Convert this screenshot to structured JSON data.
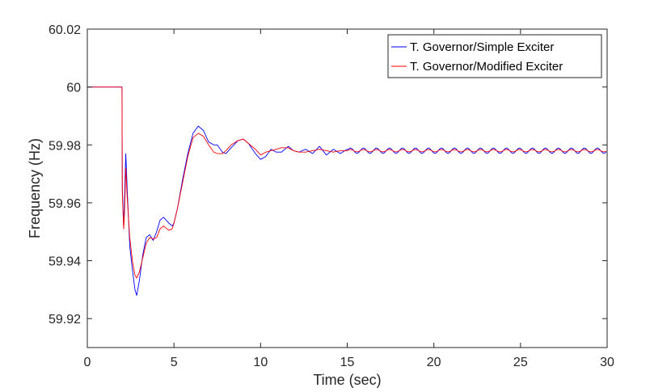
{
  "chart_data": {
    "type": "line",
    "title": "",
    "xlabel": "Time (sec)",
    "ylabel": "Frequency (Hz)",
    "xlim": [
      0,
      30
    ],
    "ylim": [
      59.91,
      60.02
    ],
    "xticks": [
      0,
      5,
      10,
      15,
      20,
      25,
      30
    ],
    "xtick_labels": [
      "0",
      "5",
      "10",
      "15",
      "20",
      "25",
      "30"
    ],
    "yticks": [
      59.92,
      59.94,
      59.96,
      59.98,
      60,
      60.02
    ],
    "ytick_labels": [
      "59.92",
      "59.94",
      "59.96",
      "59.98",
      "60",
      "60.02"
    ],
    "grid": false,
    "legend_position": "top-right",
    "steady_state": 59.978,
    "series": [
      {
        "name": "T. Governor/Simple Exciter",
        "color": "#0000ff",
        "points": [
          [
            0,
            60
          ],
          [
            2.0,
            60
          ],
          [
            2.02,
            59.965
          ],
          [
            2.1,
            59.951
          ],
          [
            2.15,
            59.962
          ],
          [
            2.22,
            59.977
          ],
          [
            2.3,
            59.965
          ],
          [
            2.45,
            59.945
          ],
          [
            2.6,
            59.937
          ],
          [
            2.75,
            59.93
          ],
          [
            2.85,
            59.928
          ],
          [
            3.0,
            59.933
          ],
          [
            3.2,
            59.942
          ],
          [
            3.4,
            59.948
          ],
          [
            3.6,
            59.949
          ],
          [
            3.8,
            59.947
          ],
          [
            4.0,
            59.95
          ],
          [
            4.2,
            59.954
          ],
          [
            4.4,
            59.955
          ],
          [
            4.7,
            59.953
          ],
          [
            4.9,
            59.952
          ],
          [
            5.0,
            59.953
          ],
          [
            5.2,
            59.958
          ],
          [
            5.5,
            59.968
          ],
          [
            5.8,
            59.977
          ],
          [
            6.1,
            59.984
          ],
          [
            6.4,
            59.9865
          ],
          [
            6.7,
            59.985
          ],
          [
            7.0,
            59.981
          ],
          [
            7.3,
            59.98
          ],
          [
            7.5,
            59.98
          ],
          [
            7.8,
            59.9775
          ],
          [
            8.0,
            59.977
          ],
          [
            8.3,
            59.979
          ],
          [
            8.7,
            59.9815
          ],
          [
            9.0,
            59.982
          ],
          [
            9.3,
            59.9805
          ],
          [
            9.7,
            59.977
          ],
          [
            10.0,
            59.975
          ],
          [
            10.3,
            59.976
          ],
          [
            10.6,
            59.9785
          ],
          [
            10.9,
            59.9775
          ],
          [
            11.2,
            59.9775
          ],
          [
            11.6,
            59.9795
          ],
          [
            11.9,
            59.978
          ],
          [
            12.2,
            59.9775
          ],
          [
            12.6,
            59.9785
          ],
          [
            13.0,
            59.977
          ],
          [
            13.4,
            59.9795
          ],
          [
            13.8,
            59.9765
          ],
          [
            14.2,
            59.9785
          ],
          [
            14.6,
            59.977
          ],
          [
            15.0,
            59.9785
          ],
          [
            30.0,
            59.978
          ]
        ],
        "oscillation": {
          "start": 15,
          "end": 30,
          "amplitude": 0.0009,
          "period": 0.75
        }
      },
      {
        "name": "T. Governor/Modified Exciter",
        "color": "#ff0000",
        "points": [
          [
            0,
            60
          ],
          [
            2.0,
            60
          ],
          [
            2.02,
            59.963
          ],
          [
            2.1,
            59.951
          ],
          [
            2.15,
            59.957
          ],
          [
            2.22,
            59.972
          ],
          [
            2.3,
            59.962
          ],
          [
            2.45,
            59.948
          ],
          [
            2.6,
            59.94
          ],
          [
            2.75,
            59.935
          ],
          [
            2.85,
            59.934
          ],
          [
            3.0,
            59.936
          ],
          [
            3.2,
            59.941
          ],
          [
            3.4,
            59.946
          ],
          [
            3.6,
            59.948
          ],
          [
            3.8,
            59.9475
          ],
          [
            4.0,
            59.948
          ],
          [
            4.2,
            59.951
          ],
          [
            4.4,
            59.952
          ],
          [
            4.7,
            59.9505
          ],
          [
            4.9,
            59.951
          ],
          [
            5.0,
            59.953
          ],
          [
            5.2,
            59.958
          ],
          [
            5.5,
            59.967
          ],
          [
            5.8,
            59.976
          ],
          [
            6.1,
            59.9825
          ],
          [
            6.4,
            59.984
          ],
          [
            6.7,
            59.983
          ],
          [
            7.0,
            59.98
          ],
          [
            7.3,
            59.9775
          ],
          [
            7.5,
            59.977
          ],
          [
            7.8,
            59.977
          ],
          [
            8.0,
            59.978
          ],
          [
            8.3,
            59.98
          ],
          [
            8.7,
            59.9815
          ],
          [
            9.0,
            59.982
          ],
          [
            9.3,
            59.9805
          ],
          [
            9.7,
            59.9785
          ],
          [
            10.0,
            59.9765
          ],
          [
            10.3,
            59.9775
          ],
          [
            10.6,
            59.978
          ],
          [
            10.9,
            59.9785
          ],
          [
            11.2,
            59.979
          ],
          [
            11.6,
            59.979
          ],
          [
            11.9,
            59.978
          ],
          [
            12.2,
            59.9775
          ],
          [
            12.6,
            59.9775
          ],
          [
            13.0,
            59.978
          ],
          [
            13.4,
            59.9785
          ],
          [
            13.8,
            59.978
          ],
          [
            14.2,
            59.9775
          ],
          [
            14.6,
            59.978
          ],
          [
            15.0,
            59.978
          ],
          [
            30.0,
            59.978
          ]
        ],
        "oscillation": {
          "start": 15,
          "end": 30,
          "amplitude": 0.0004,
          "period": 0.75
        }
      }
    ]
  }
}
